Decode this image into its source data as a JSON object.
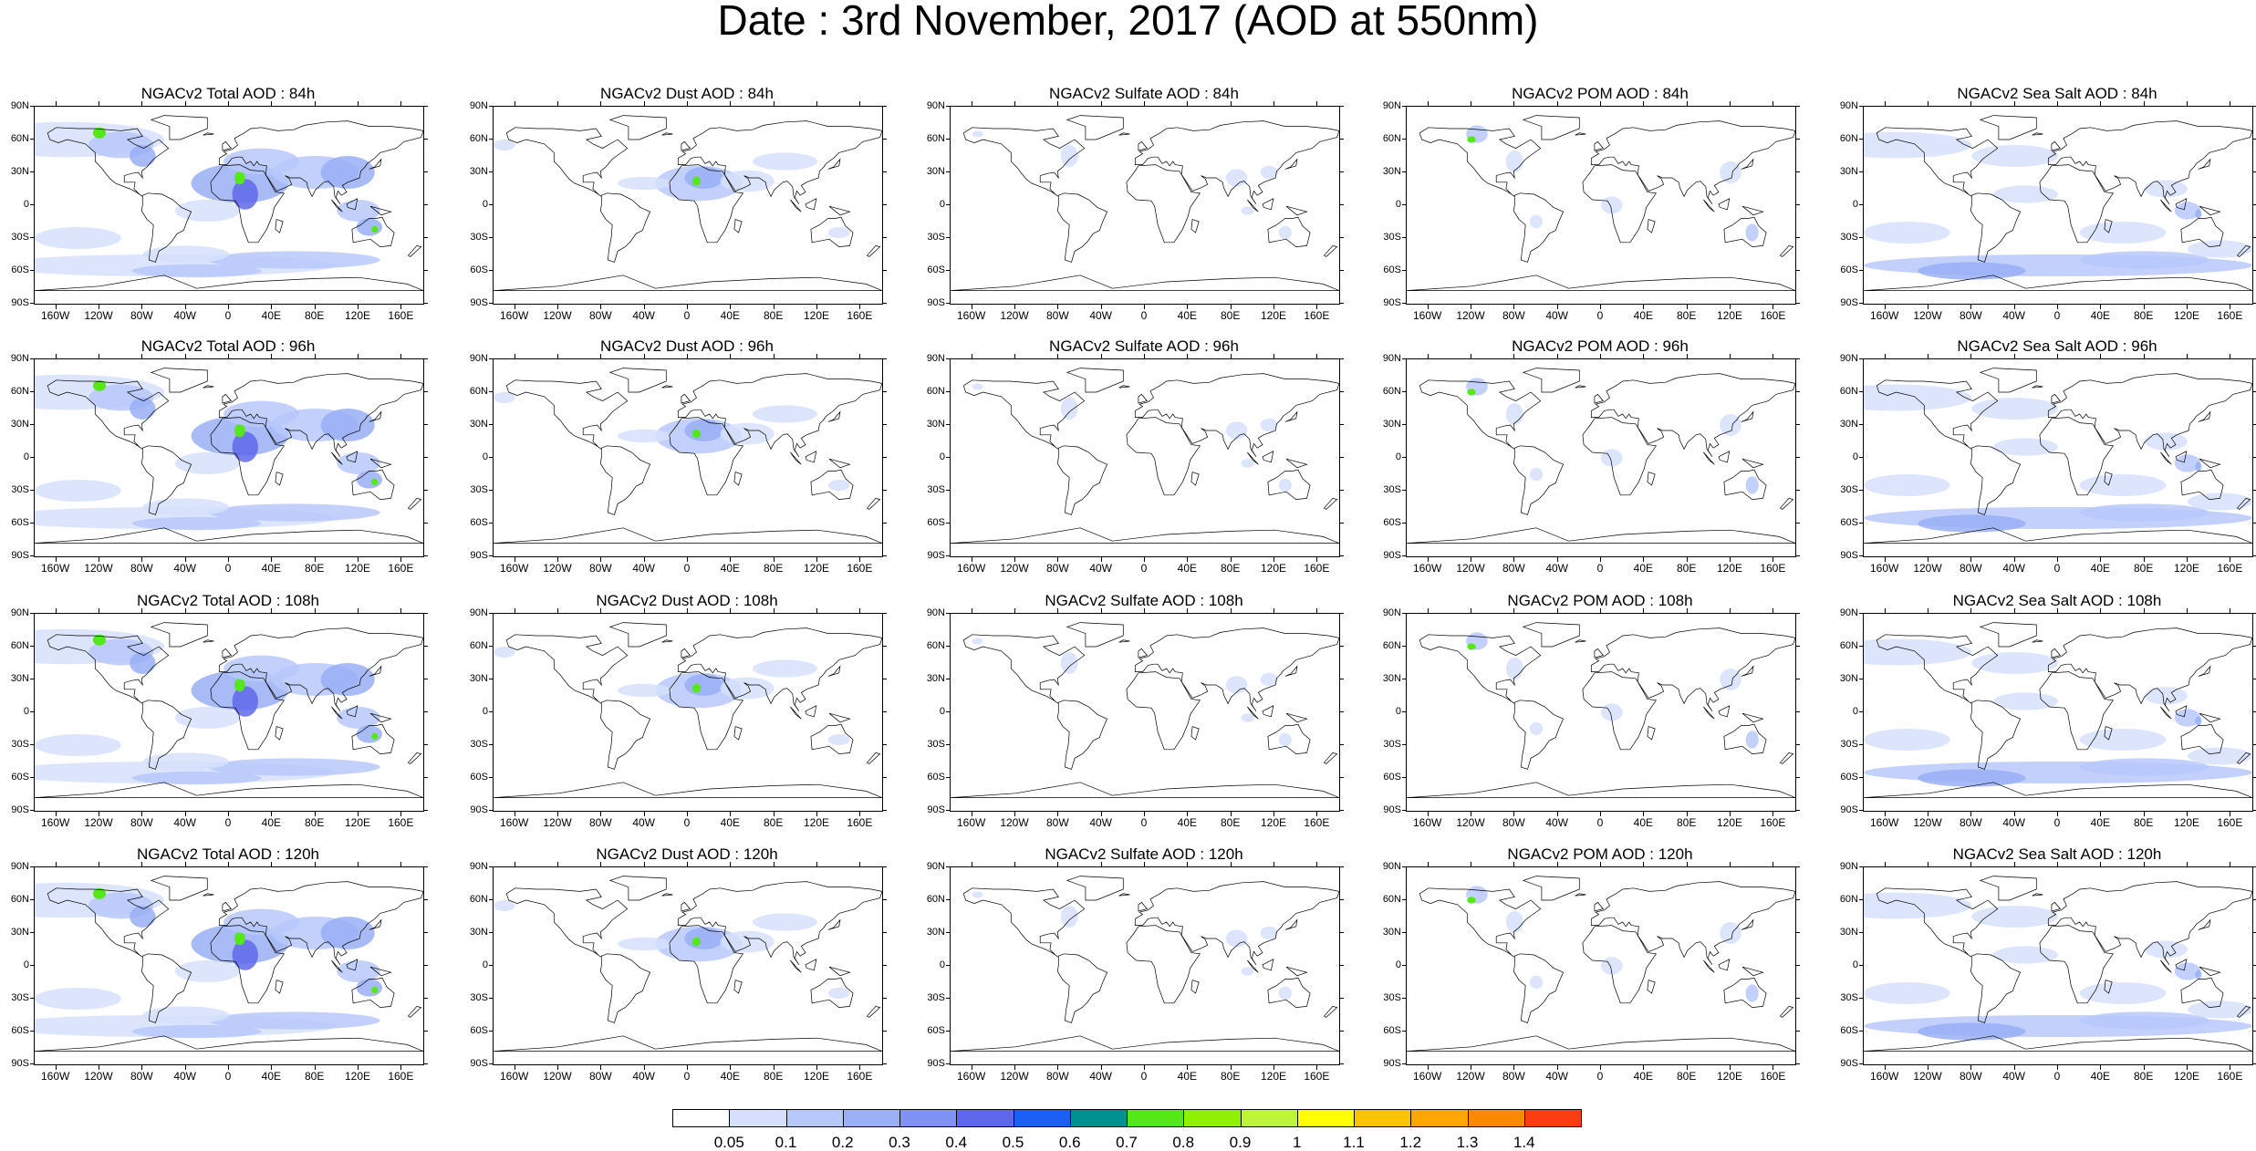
{
  "title": "Date : 3rd November, 2017 (AOD at 550nm)",
  "panels": [
    {
      "title": "NGACv2 Total AOD : 84h",
      "species": "total"
    },
    {
      "title": "NGACv2 Dust AOD : 84h",
      "species": "dust"
    },
    {
      "title": "NGACv2 Sulfate AOD : 84h",
      "species": "sulfate"
    },
    {
      "title": "NGACv2 POM AOD : 84h",
      "species": "pom"
    },
    {
      "title": "NGACv2 Sea Salt AOD : 84h",
      "species": "seasalt"
    },
    {
      "title": "NGACv2 Total AOD : 96h",
      "species": "total"
    },
    {
      "title": "NGACv2 Dust AOD : 96h",
      "species": "dust"
    },
    {
      "title": "NGACv2 Sulfate AOD : 96h",
      "species": "sulfate"
    },
    {
      "title": "NGACv2 POM AOD : 96h",
      "species": "pom"
    },
    {
      "title": "NGACv2 Sea Salt AOD : 96h",
      "species": "seasalt"
    },
    {
      "title": "NGACv2 Total AOD : 108h",
      "species": "total"
    },
    {
      "title": "NGACv2 Dust AOD : 108h",
      "species": "dust"
    },
    {
      "title": "NGACv2 Sulfate AOD : 108h",
      "species": "sulfate"
    },
    {
      "title": "NGACv2 POM AOD : 108h",
      "species": "pom"
    },
    {
      "title": "NGACv2 Sea Salt AOD : 108h",
      "species": "seasalt"
    },
    {
      "title": "NGACv2 Total AOD : 120h",
      "species": "total"
    },
    {
      "title": "NGACv2 Dust AOD : 120h",
      "species": "dust"
    },
    {
      "title": "NGACv2 Sulfate AOD : 120h",
      "species": "sulfate"
    },
    {
      "title": "NGACv2 POM AOD : 120h",
      "species": "pom"
    },
    {
      "title": "NGACv2 Sea Salt  AOD : 120h",
      "species": "seasalt"
    }
  ],
  "lat_labels": [
    "90N",
    "60N",
    "30N",
    "0",
    "30S",
    "60S",
    "90S"
  ],
  "lon_labels": [
    "160W",
    "120W",
    "80W",
    "40W",
    "0",
    "40E",
    "80E",
    "120E",
    "160E"
  ],
  "colorbar": {
    "labels": [
      "0.05",
      "0.1",
      "0.2",
      "0.3",
      "0.4",
      "0.5",
      "0.6",
      "0.7",
      "0.8",
      "0.9",
      "1",
      "1.1",
      "1.2",
      "1.3",
      "1.4"
    ],
    "colors": [
      "#ffffff",
      "#d6e0fc",
      "#b7c8fa",
      "#99aff6",
      "#8093f2",
      "#5f68ea",
      "#1d5ff2",
      "#009090",
      "#55e61c",
      "#8ff000",
      "#bcf53c",
      "#ffff00",
      "#fbc400",
      "#fca800",
      "#f98a00",
      "#ff3c14"
    ]
  }
}
